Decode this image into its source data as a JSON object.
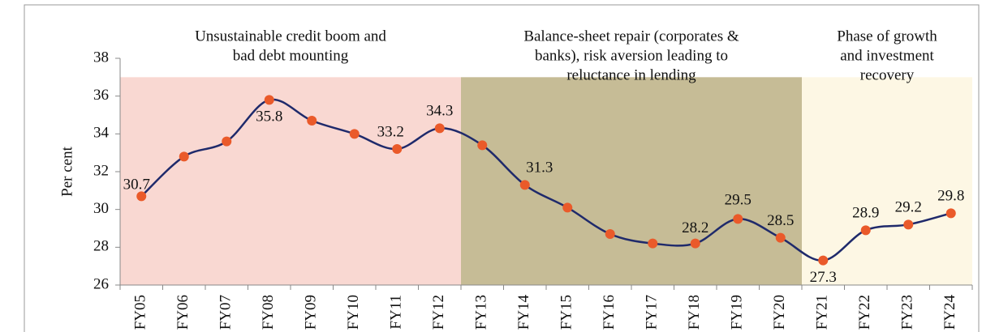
{
  "chart_data": {
    "type": "line",
    "y_label": "Per cent",
    "categories": [
      "FY05",
      "FY06",
      "FY07",
      "FY08",
      "FY09",
      "FY10",
      "FY11",
      "FY12",
      "FY13",
      "FY14",
      "FY15",
      "FY16",
      "FY17",
      "FY18",
      "FY19",
      "FY20",
      "FY21",
      "FY22",
      "FY23",
      "FY24"
    ],
    "series": [
      {
        "line_color": "#1f2a6b",
        "marker_color": "#ea5a2a",
        "values": [
          30.7,
          32.8,
          33.6,
          35.8,
          34.7,
          34.0,
          33.2,
          34.3,
          33.4,
          31.3,
          30.1,
          28.7,
          28.2,
          28.2,
          29.5,
          28.5,
          27.3,
          28.9,
          29.2,
          29.8
        ],
        "value_labels": [
          "30.7",
          null,
          null,
          "35.8",
          null,
          null,
          "33.2",
          "34.3",
          null,
          "31.3",
          null,
          null,
          null,
          "28.2",
          "29.5",
          "28.5",
          "27.3",
          "28.9",
          "29.2",
          "29.8"
        ]
      }
    ],
    "ylim": [
      26,
      38
    ],
    "yticks": [
      26,
      28,
      30,
      32,
      34,
      36,
      38
    ],
    "phases": [
      {
        "from": "FY05",
        "to": "FY12",
        "ymax": 37,
        "color": "#f9d8d2",
        "label_lines": [
          "Unsustainable credit boom and",
          "bad debt mounting"
        ]
      },
      {
        "from": "FY13",
        "to": "FY20",
        "ymax": 37,
        "color": "#c6bc96",
        "label_lines": [
          "Balance-sheet repair (corporates &",
          "banks),  risk aversion leading to",
          "reluctance in lending"
        ]
      },
      {
        "from": "FY21",
        "to": "FY24",
        "ymax": 37,
        "color": "#fdf7e4",
        "label_lines": [
          "Phase of growth",
          "and investment",
          "recovery"
        ]
      }
    ]
  }
}
